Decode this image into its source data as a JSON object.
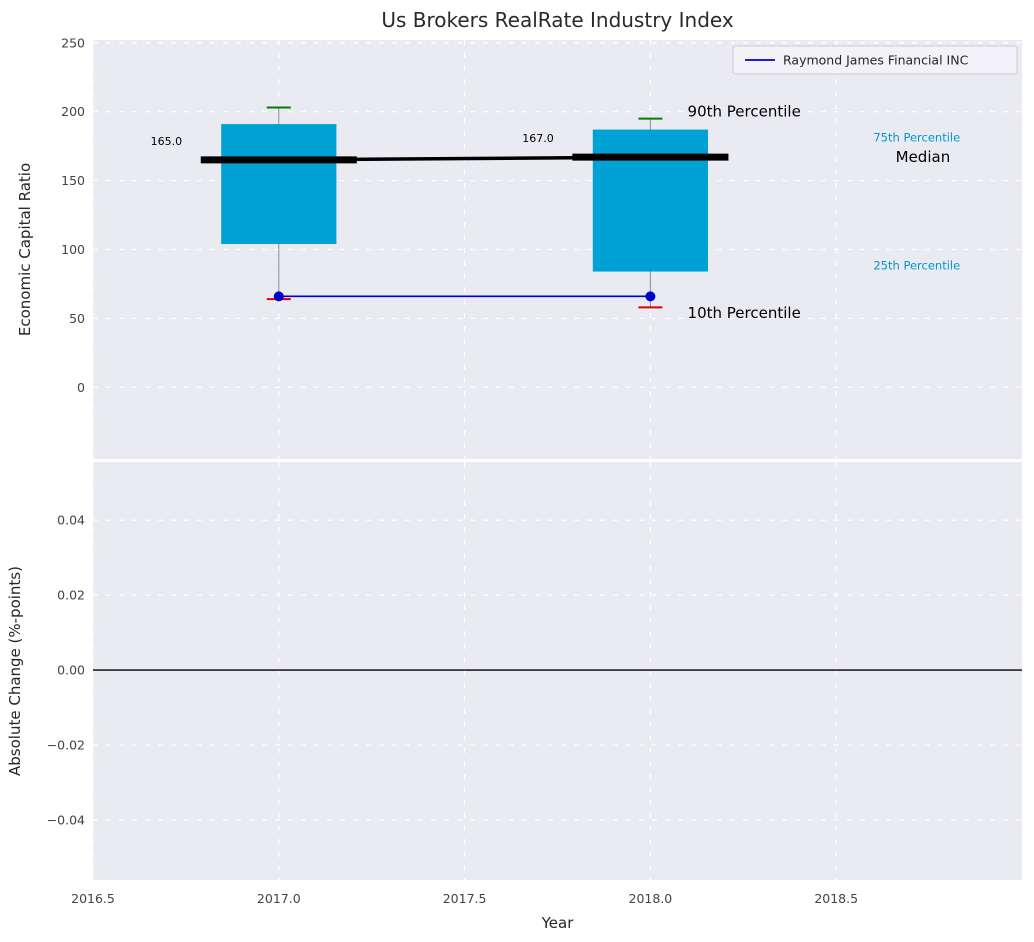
{
  "figure": {
    "title": "Us Brokers RealRate Industry Index",
    "background": "#ffffff",
    "axes_background": "#eaeaf2",
    "grid_color": "#ffffff",
    "tick_color": "#444444",
    "text_color": "#262626"
  },
  "legend": {
    "label": "Raymond James Financial INC",
    "line_color": "#0000cd",
    "background": "#f2f2f8",
    "border": "#cccccc"
  },
  "chart_data": [
    {
      "type": "boxplot",
      "title": "Us Brokers RealRate Industry Index",
      "ylabel": "Economic Capital Ratio",
      "xlim": [
        2016.5,
        2019.0
      ],
      "ylim": [
        -52,
        252
      ],
      "yticks": [
        0,
        50,
        100,
        150,
        200,
        250
      ],
      "xticks": [
        2016.5,
        2017.0,
        2017.5,
        2018.0,
        2018.5
      ],
      "grid": true,
      "box_color": "#00a1d4",
      "whisker_color": "#8a8a8a",
      "cap_high_color": "#008000",
      "cap_low_color": "#dd0000",
      "median_color": "#000000",
      "boxes": [
        {
          "x": 2017,
          "p10": 64,
          "p25": 104,
          "median": 165,
          "p75": 191,
          "p90": 203,
          "median_label": "165.0"
        },
        {
          "x": 2018,
          "p10": 58,
          "p25": 84,
          "median": 167,
          "p75": 187,
          "p90": 195,
          "median_label": "167.0"
        }
      ],
      "series": [
        {
          "name": "Raymond James Financial INC",
          "color": "#0000cd",
          "marker": "circle",
          "x": [
            2017,
            2018
          ],
          "y": [
            66,
            66
          ]
        }
      ],
      "annotations": [
        {
          "text": "90th Percentile",
          "x": 2018.1,
          "y": 200,
          "size": 15,
          "color": "#000000"
        },
        {
          "text": "75th Percentile",
          "x": 2018.6,
          "y": 182,
          "size": 11.5,
          "color": "#0099c9"
        },
        {
          "text": "Median",
          "x": 2018.66,
          "y": 167,
          "size": 15,
          "color": "#000000"
        },
        {
          "text": "25th Percentile",
          "x": 2018.6,
          "y": 89,
          "size": 11.5,
          "color": "#0099c9"
        },
        {
          "text": "10th Percentile",
          "x": 2018.1,
          "y": 54,
          "size": 15,
          "color": "#000000"
        }
      ]
    },
    {
      "type": "line",
      "ylabel": "Absolute Change (%-points)",
      "xlabel": "Year",
      "xlim": [
        2016.5,
        2019.0
      ],
      "ylim": [
        -0.056,
        0.0555
      ],
      "yticks": [
        -0.04,
        -0.02,
        0.0,
        0.02,
        0.04
      ],
      "xticks": [
        2016.5,
        2017.0,
        2017.5,
        2018.0,
        2018.5
      ],
      "grid": true,
      "zero_line": {
        "y": 0,
        "color": "#000000"
      },
      "series": []
    }
  ]
}
